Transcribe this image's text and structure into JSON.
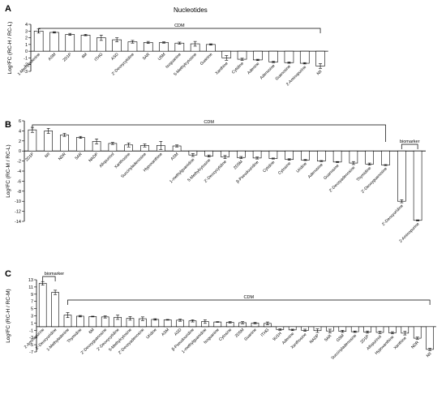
{
  "title": "Nucleotides",
  "chart_data": [
    {
      "type": "bar",
      "panel": "A",
      "ylabel": "Log²FC (RC-H / RC-L)",
      "ylim": [
        -3,
        4
      ],
      "yticks": [
        4,
        3,
        2,
        1,
        0,
        -1,
        -2,
        -3
      ],
      "categories": [
        "1-Methyladenine",
        "ASM",
        "2D1P",
        "6M",
        "ITHG",
        "ASD",
        "2'-Deoxycytidine",
        "5AR",
        "U5M",
        "Isoguanine",
        "5-Methylcytosine",
        "Guanine",
        "Xanthine",
        "Cytidine",
        "Adenine",
        "Adenosine",
        "Guanosine",
        "2-Aminopurine",
        "NII"
      ],
      "values": [
        3.0,
        2.8,
        2.5,
        2.4,
        2.0,
        1.7,
        1.4,
        1.3,
        1.3,
        1.2,
        1.1,
        1.0,
        -1.0,
        -1.2,
        -1.3,
        -1.6,
        -1.7,
        -1.8,
        -2.2
      ],
      "errors": [
        0.3,
        0.1,
        0.15,
        0.1,
        0.4,
        0.3,
        0.2,
        0.15,
        0.1,
        0.15,
        0.35,
        0.1,
        0.35,
        0.15,
        0.1,
        0.1,
        0.1,
        0.1,
        0.35
      ],
      "annotations": [
        {
          "label": "CDM",
          "from": 0,
          "to": 18
        }
      ]
    },
    {
      "type": "bar",
      "panel": "B",
      "ylabel": "Log²FC (RC-M / RC-L)",
      "ylim": [
        -14,
        6
      ],
      "yticks": [
        6,
        4,
        2,
        0,
        -2,
        -4,
        -6,
        -8,
        -10,
        -12,
        -14
      ],
      "categories": [
        "2D1P",
        "NII",
        "NDR",
        "5AR",
        "NADP",
        "Allopurinol",
        "Xanthosine",
        "Succinyladenosine",
        "Hypoxanthine",
        "ASM",
        "1-methylguanidine",
        "5-Methylcytosine",
        "2'-Deoxycytidine",
        "2D5M",
        "β-Pseudouridine",
        "Cytidine",
        "Cytosine",
        "Uridine",
        "Adenosine",
        "Guanosine",
        "2'-Deoxyadenosine",
        "Thymidine",
        "2'-Deoxyguanosine",
        "2'-Deoxyuridine",
        "2-Aminopurine"
      ],
      "values": [
        4.2,
        4.0,
        3.2,
        2.7,
        1.9,
        1.5,
        1.2,
        1.1,
        1.1,
        1.0,
        -0.8,
        -1.0,
        -1.2,
        -1.3,
        -1.4,
        -1.5,
        -1.7,
        -1.8,
        -2.0,
        -2.2,
        -2.4,
        -2.6,
        -2.8,
        -10.0,
        -13.8
      ],
      "errors": [
        0.5,
        0.5,
        0.3,
        0.2,
        0.5,
        0.2,
        0.4,
        0.3,
        0.8,
        0.2,
        0.3,
        0.2,
        0.3,
        0.2,
        0.2,
        0.1,
        0.15,
        0.1,
        0.1,
        0.1,
        0.3,
        0.2,
        0.1,
        0.3,
        0.1
      ],
      "annotations": [
        {
          "label": "CDM",
          "from": 0,
          "to": 22
        },
        {
          "label": "biomarker",
          "from": 23,
          "to": 24
        }
      ]
    },
    {
      "type": "bar",
      "panel": "C",
      "ylabel": "Log²FC (RC-H / RC-M)",
      "ylim": [
        -7,
        13
      ],
      "yticks": [
        13,
        11,
        9,
        7,
        5,
        3,
        1,
        -1,
        -3,
        -5,
        -7
      ],
      "categories": [
        "2-Aminopurine",
        "2'-Deoxyuridine",
        "1-Methyladenine",
        "Thymidine",
        "6M",
        "2'-Deoxyguanosine",
        "2'-Deoxycytidine",
        "5-Methylcytosine",
        "2'-Deoxyadenosine",
        "Uridine",
        "ASM",
        "ASD",
        "β-Pseudouridine",
        "1-methylguanidine",
        "Isoguanine",
        "Cytosine",
        "2D5M",
        "Guanine",
        "ITHG",
        "9U1H",
        "Adenine",
        "Xanthosine",
        "NADP",
        "5AR",
        "G5M",
        "Succinyladenosine",
        "2D1P",
        "Allopurinol",
        "Hypoxanthine",
        "Xanthine",
        "NDR",
        "NII"
      ],
      "values": [
        12.0,
        9.5,
        3.2,
        2.9,
        2.8,
        2.7,
        2.6,
        2.3,
        2.2,
        2.0,
        1.9,
        1.8,
        1.6,
        1.4,
        1.3,
        1.2,
        1.1,
        1.0,
        0.9,
        -0.8,
        -0.9,
        -1.0,
        -1.1,
        -1.2,
        -1.3,
        -1.4,
        -1.5,
        -1.6,
        -1.7,
        -1.8,
        -3.2,
        -6.3
      ],
      "errors": [
        0.5,
        0.6,
        0.7,
        0.2,
        0.1,
        0.3,
        0.6,
        0.5,
        0.5,
        0.2,
        0.1,
        0.3,
        0.3,
        0.5,
        0.1,
        0.2,
        0.3,
        0.2,
        0.4,
        0.2,
        0.2,
        0.3,
        0.5,
        0.5,
        0.3,
        0.2,
        0.3,
        0.3,
        0.3,
        0.5,
        0.3,
        0.3
      ],
      "annotations": [
        {
          "label": "biomarker",
          "from": 0,
          "to": 1
        },
        {
          "label": "CDM",
          "from": 2,
          "to": 31
        }
      ]
    }
  ]
}
